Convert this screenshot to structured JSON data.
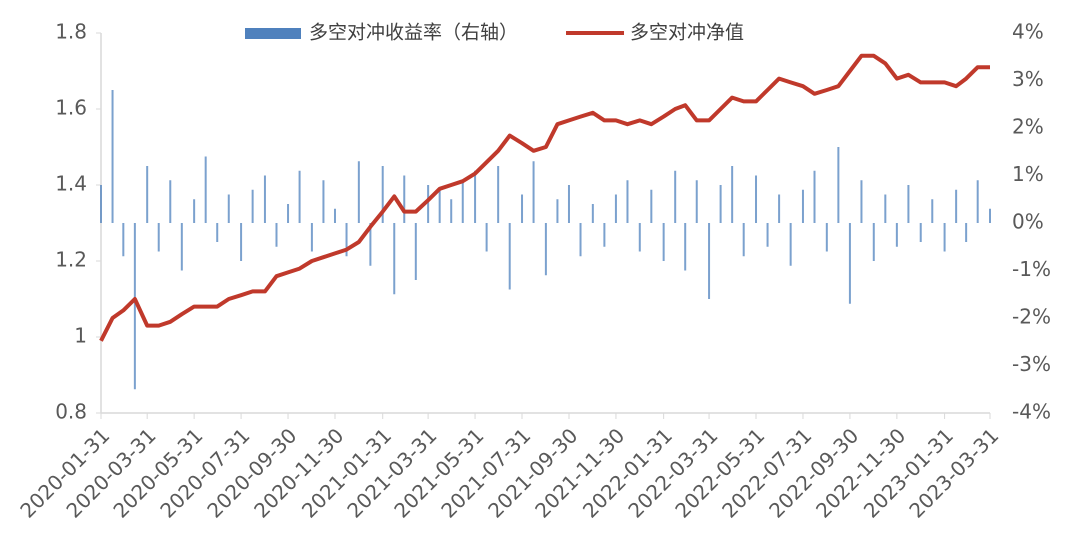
{
  "chart_data": {
    "type": "combo",
    "x": [
      "2020-01-31",
      "2020-02-15",
      "2020-02-29",
      "2020-03-15",
      "2020-03-31",
      "2020-04-15",
      "2020-04-30",
      "2020-05-15",
      "2020-05-31",
      "2020-06-15",
      "2020-06-30",
      "2020-07-15",
      "2020-07-31",
      "2020-08-15",
      "2020-08-31",
      "2020-09-15",
      "2020-09-30",
      "2020-10-15",
      "2020-10-31",
      "2020-11-15",
      "2020-11-30",
      "2020-12-15",
      "2020-12-31",
      "2021-01-15",
      "2021-01-31",
      "2021-02-15",
      "2021-02-28",
      "2021-03-15",
      "2021-03-31",
      "2021-04-15",
      "2021-04-30",
      "2021-05-15",
      "2021-05-31",
      "2021-06-15",
      "2021-06-30",
      "2021-07-15",
      "2021-07-31",
      "2021-08-15",
      "2021-08-31",
      "2021-09-15",
      "2021-09-30",
      "2021-10-15",
      "2021-10-31",
      "2021-11-15",
      "2021-11-30",
      "2021-12-15",
      "2021-12-31",
      "2022-01-15",
      "2022-01-31",
      "2022-02-15",
      "2022-02-28",
      "2022-03-15",
      "2022-03-31",
      "2022-04-15",
      "2022-04-30",
      "2022-05-15",
      "2022-05-31",
      "2022-06-15",
      "2022-06-30",
      "2022-07-15",
      "2022-07-31",
      "2022-08-15",
      "2022-08-31",
      "2022-09-15",
      "2022-09-30",
      "2022-10-15",
      "2022-10-31",
      "2022-11-15",
      "2022-11-30",
      "2022-12-15",
      "2022-12-31",
      "2023-01-15",
      "2023-01-31",
      "2023-02-15",
      "2023-02-28",
      "2023-03-15",
      "2023-03-31"
    ],
    "series": [
      {
        "name": "多空对冲收益率（右轴）",
        "type": "bar",
        "axis": "y2",
        "color": "#4f81bd",
        "values": [
          0.8,
          2.8,
          -0.7,
          -3.5,
          1.2,
          -0.6,
          0.9,
          -1.0,
          0.5,
          1.4,
          -0.4,
          0.6,
          -0.8,
          0.7,
          1.0,
          -0.5,
          0.4,
          1.1,
          -0.6,
          0.9,
          0.3,
          -0.7,
          1.3,
          -0.9,
          1.2,
          -1.5,
          1.0,
          -1.2,
          0.8,
          0.7,
          0.5,
          0.9,
          1.1,
          -0.6,
          1.2,
          -1.4,
          0.6,
          1.3,
          -1.1,
          0.5,
          0.8,
          -0.7,
          0.4,
          -0.5,
          0.6,
          0.9,
          -0.6,
          0.7,
          -0.8,
          1.1,
          -1.0,
          0.9,
          -1.6,
          0.8,
          1.2,
          -0.7,
          1.0,
          -0.5,
          0.6,
          -0.9,
          0.7,
          1.1,
          -0.6,
          1.6,
          -1.7,
          0.9,
          -0.8,
          0.6,
          -0.5,
          0.8,
          -0.4,
          0.5,
          -0.6,
          0.7,
          -0.4,
          0.9,
          0.3
        ]
      },
      {
        "name": "多空对冲净值",
        "type": "line",
        "color": "#c0392b",
        "values": [
          0.99,
          1.05,
          1.07,
          1.1,
          1.03,
          1.03,
          1.04,
          1.06,
          1.08,
          1.08,
          1.08,
          1.1,
          1.11,
          1.12,
          1.12,
          1.16,
          1.17,
          1.18,
          1.2,
          1.21,
          1.22,
          1.23,
          1.25,
          1.29,
          1.33,
          1.37,
          1.33,
          1.33,
          1.36,
          1.39,
          1.4,
          1.41,
          1.43,
          1.46,
          1.49,
          1.53,
          1.51,
          1.49,
          1.5,
          1.56,
          1.57,
          1.58,
          1.59,
          1.57,
          1.57,
          1.56,
          1.57,
          1.56,
          1.58,
          1.6,
          1.61,
          1.57,
          1.57,
          1.6,
          1.63,
          1.62,
          1.62,
          1.65,
          1.68,
          1.67,
          1.66,
          1.64,
          1.65,
          1.66,
          1.7,
          1.74,
          1.74,
          1.72,
          1.68,
          1.69,
          1.67,
          1.67,
          1.67,
          1.66,
          1.68,
          1.71,
          1.71
        ]
      }
    ],
    "xticks": [
      "2020-01-31",
      "2020-03-31",
      "2020-05-31",
      "2020-07-31",
      "2020-09-30",
      "2020-11-30",
      "2021-01-31",
      "2021-03-31",
      "2021-05-31",
      "2021-07-31",
      "2021-09-30",
      "2021-11-30",
      "2022-01-31",
      "2022-03-31",
      "2022-05-31",
      "2022-07-31",
      "2022-09-30",
      "2022-11-30",
      "2023-01-31",
      "2023-03-31"
    ],
    "ylim": [
      0.8,
      1.8
    ],
    "yticks": [
      0.8,
      1,
      1.2,
      1.4,
      1.6,
      1.8
    ],
    "y2lim": [
      -4,
      4
    ],
    "y2ticks": [
      {
        "value": -4,
        "label": "-4%"
      },
      {
        "value": -3,
        "label": "-3%"
      },
      {
        "value": -2,
        "label": "-2%"
      },
      {
        "value": -1,
        "label": "-1%"
      },
      {
        "value": 0,
        "label": "0%"
      },
      {
        "value": 1,
        "label": "1%"
      },
      {
        "value": 2,
        "label": "2%"
      },
      {
        "value": 3,
        "label": "3%"
      },
      {
        "value": 4,
        "label": "4%"
      }
    ],
    "legend": "top"
  }
}
